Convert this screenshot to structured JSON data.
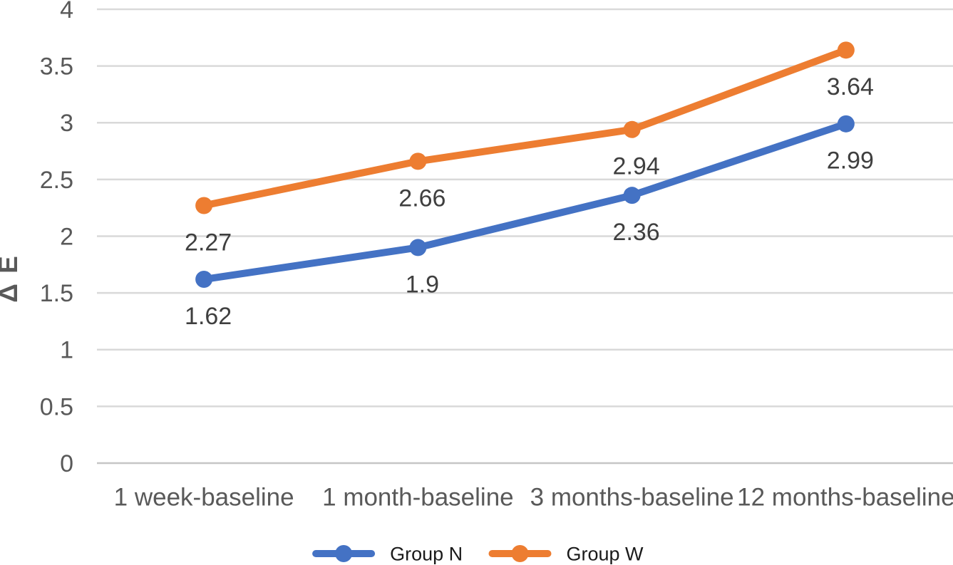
{
  "chart_data": {
    "type": "line",
    "title": "",
    "xlabel": "",
    "ylabel": "Δ E",
    "ylim": [
      0,
      4
    ],
    "ytick_step": 0.5,
    "yticks": [
      {
        "value": 0,
        "label": "0"
      },
      {
        "value": 0.5,
        "label": "0.5"
      },
      {
        "value": 1,
        "label": "1"
      },
      {
        "value": 1.5,
        "label": "1.5"
      },
      {
        "value": 2,
        "label": "2"
      },
      {
        "value": 2.5,
        "label": "2.5"
      },
      {
        "value": 3,
        "label": "3"
      },
      {
        "value": 3.5,
        "label": "3.5"
      },
      {
        "value": 4,
        "label": "4"
      }
    ],
    "categories": [
      "1 week-baseline",
      "1 month-baseline",
      "3 months-baseline",
      "12 months-baseline"
    ],
    "series": [
      {
        "name": "Group N",
        "color": "#4472C4",
        "values": [
          1.62,
          1.9,
          2.36,
          2.99
        ],
        "labels": [
          "1.62",
          "1.9",
          "2.36",
          "2.99"
        ]
      },
      {
        "name": "Group W",
        "color": "#ED7D31",
        "values": [
          2.27,
          2.66,
          2.94,
          3.64
        ],
        "labels": [
          "2.27",
          "2.66",
          "2.94",
          "3.64"
        ]
      }
    ],
    "grid": true,
    "data_labels_position": "below-point",
    "legend_position": "bottom",
    "legend": [
      {
        "name": "Group N",
        "color": "#4472C4"
      },
      {
        "name": "Group W",
        "color": "#ED7D31"
      }
    ]
  },
  "colors": {
    "background": "#FFFFFF",
    "gridline": "#D9D9D9",
    "axis_line": "#C6C6C6",
    "tick_text": "#595959",
    "axis_title_text": "#595959",
    "data_label_text": "#3F3F3F",
    "legend_text": "#1A1A1A"
  }
}
